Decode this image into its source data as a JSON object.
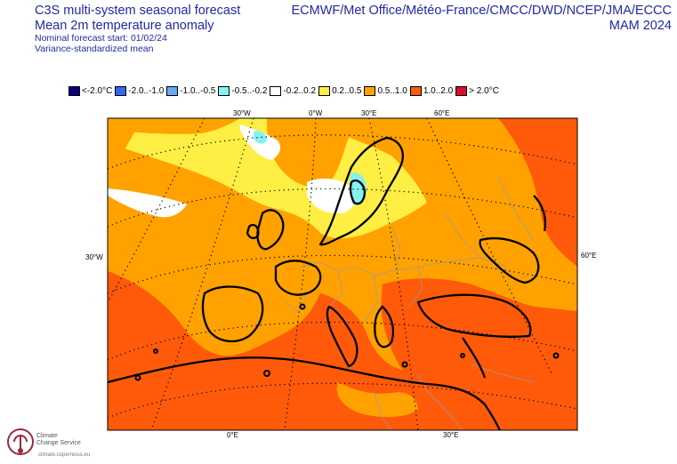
{
  "header": {
    "title": "C3S multi-system seasonal forecast",
    "subtitle": "Mean 2m temperature anomaly",
    "start": "Nominal forecast start: 01/02/24",
    "method": "Variance-standardized mean",
    "systems": "ECMWF/Met Office/Météo-France/CMCC/DWD/NCEP/JMA/ECCC",
    "season": "MAM 2024"
  },
  "legend": [
    {
      "label": "<-2.0°C",
      "color": "#0a007e"
    },
    {
      "label": "-2.0..-1.0",
      "color": "#3466f2"
    },
    {
      "label": "-1.0..-0.5",
      "color": "#66aaf4"
    },
    {
      "label": "-0.5..-0.2",
      "color": "#84f2f2"
    },
    {
      "label": "-0.2..0.2",
      "color": "#ffffff"
    },
    {
      "label": "0.2..0.5",
      "color": "#ffee44"
    },
    {
      "label": "0.5..1.0",
      "color": "#ffa200"
    },
    {
      "label": "1.0..2.0",
      "color": "#ff5a0a"
    },
    {
      "label": "> 2.0°C",
      "color": "#d8102c"
    }
  ],
  "coords": {
    "top_30w": "30°W",
    "top_0w": "0°W",
    "top_30e": "30°E",
    "top_60e": "60°E",
    "left_30w": "30°W",
    "right_60e": "60°E",
    "bottom_0e": "0°E",
    "bottom_30e": "30°E"
  },
  "logo": {
    "name_line1": "Climate",
    "name_line2": "Change Service",
    "url": "climate.copernicus.eu"
  }
}
